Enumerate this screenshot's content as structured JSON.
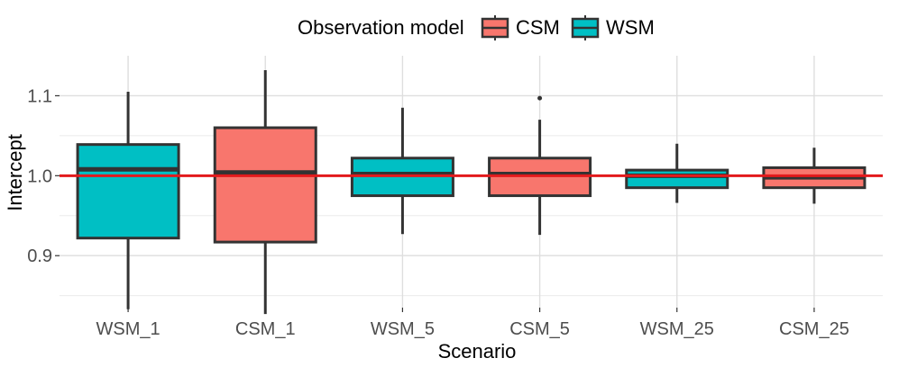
{
  "chart_data": {
    "type": "boxplot",
    "xlabel": "Scenario",
    "ylabel": "Intercept",
    "ylim": [
      0.835,
      1.15
    ],
    "yticks": [
      0.9,
      1.0,
      1.1
    ],
    "ytick_labels": [
      "0.9",
      "1.0",
      "1.1"
    ],
    "reference_line": {
      "y": 1.0,
      "color": "#e31a1c"
    },
    "legend": {
      "title": "Observation model",
      "position": "top",
      "entries": [
        {
          "name": "CSM",
          "color": "#f8766d"
        },
        {
          "name": "WSM",
          "color": "#00bfc4"
        }
      ]
    },
    "categories": [
      "WSM_1",
      "CSM_1",
      "WSM_5",
      "CSM_5",
      "WSM_25",
      "CSM_25"
    ],
    "boxes": [
      {
        "category": "WSM_1",
        "model": "WSM",
        "whisker_low": 0.833,
        "q1": 0.922,
        "median": 1.008,
        "q3": 1.039,
        "whisker_high": 1.105,
        "outliers": []
      },
      {
        "category": "CSM_1",
        "model": "CSM",
        "whisker_low": 0.827,
        "q1": 0.917,
        "median": 1.004,
        "q3": 1.06,
        "whisker_high": 1.132,
        "outliers": []
      },
      {
        "category": "WSM_5",
        "model": "WSM",
        "whisker_low": 0.927,
        "q1": 0.975,
        "median": 1.002,
        "q3": 1.022,
        "whisker_high": 1.085,
        "outliers": []
      },
      {
        "category": "CSM_5",
        "model": "CSM",
        "whisker_low": 0.926,
        "q1": 0.975,
        "median": 1.002,
        "q3": 1.022,
        "whisker_high": 1.07,
        "outliers": [
          1.097
        ]
      },
      {
        "category": "WSM_25",
        "model": "WSM",
        "whisker_low": 0.966,
        "q1": 0.985,
        "median": 1.0,
        "q3": 1.007,
        "whisker_high": 1.04,
        "outliers": []
      },
      {
        "category": "CSM_25",
        "model": "CSM",
        "whisker_low": 0.965,
        "q1": 0.985,
        "median": 0.998,
        "q3": 1.01,
        "whisker_high": 1.035,
        "outliers": []
      }
    ],
    "colors": {
      "WSM": "#00bfc4",
      "CSM": "#f8766d",
      "outline": "#333333",
      "grid": "#dedede"
    }
  }
}
